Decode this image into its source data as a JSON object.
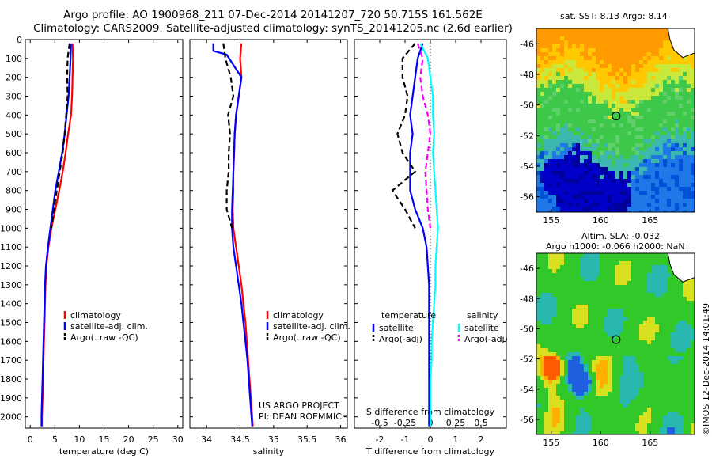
{
  "titles": {
    "line1": "Argo profile: AO 1900968_211 07-Dec-2014 20141207_720 50.715S 161.562E",
    "line2": "Climatology: CARS2009. Satellite-adjusted climatology: synTS_20141205.nc (2.6d earlier)"
  },
  "credits": {
    "project": "US ARGO PROJECT",
    "pi": "PI: DEAN ROEMMICH"
  },
  "stamp": "©IMOS 12-Dec-2014 14:01:49",
  "colors": {
    "climatology": "#ff0000",
    "satellite": "#0000ff",
    "argo": "#000000",
    "sal_satellite": "#00ffff",
    "sal_argo": "#ff00ff"
  },
  "chart_data": [
    {
      "type": "line",
      "xlabel": "temperature (deg C)",
      "xlim": [
        -1,
        31
      ],
      "xticks": [
        0,
        5,
        10,
        15,
        20,
        25,
        30
      ],
      "ylim": [
        2060,
        0
      ],
      "yticks": [
        0,
        100,
        200,
        300,
        400,
        500,
        600,
        700,
        800,
        900,
        1000,
        1100,
        1200,
        1300,
        1400,
        1500,
        1600,
        1700,
        1800,
        1900,
        2000
      ],
      "legend_placement": "right-middle",
      "series": [
        {
          "name": "climatology",
          "color": "#ff0000",
          "dash": "solid",
          "points": [
            [
              8.6,
              20
            ],
            [
              8.7,
              100
            ],
            [
              8.6,
              200
            ],
            [
              8.5,
              300
            ],
            [
              8.3,
              400
            ],
            [
              7.7,
              500
            ],
            [
              7.2,
              600
            ],
            [
              6.6,
              700
            ],
            [
              5.9,
              800
            ],
            [
              5.1,
              900
            ],
            [
              4.3,
              1000
            ],
            [
              3.7,
              1100
            ],
            [
              3.3,
              1200
            ],
            [
              3.1,
              1300
            ],
            [
              3.0,
              1400
            ],
            [
              2.9,
              1500
            ],
            [
              2.8,
              1600
            ],
            [
              2.7,
              1700
            ],
            [
              2.6,
              1800
            ],
            [
              2.5,
              1900
            ],
            [
              2.4,
              2000
            ],
            [
              2.4,
              2050
            ]
          ]
        },
        {
          "name": "satellite-adj. clim.",
          "color": "#0000ff",
          "dash": "solid",
          "points": [
            [
              8.3,
              20
            ],
            [
              8.2,
              100
            ],
            [
              8.0,
              200
            ],
            [
              7.8,
              300
            ],
            [
              7.4,
              400
            ],
            [
              7.0,
              500
            ],
            [
              6.5,
              600
            ],
            [
              5.8,
              700
            ],
            [
              5.1,
              800
            ],
            [
              4.6,
              900
            ],
            [
              4.1,
              1000
            ],
            [
              3.6,
              1100
            ],
            [
              3.2,
              1200
            ],
            [
              3.0,
              1300
            ],
            [
              2.9,
              1400
            ],
            [
              2.8,
              1500
            ],
            [
              2.7,
              1600
            ],
            [
              2.6,
              1700
            ],
            [
              2.5,
              1800
            ],
            [
              2.4,
              1900
            ],
            [
              2.3,
              2000
            ],
            [
              2.3,
              2050
            ]
          ]
        },
        {
          "name": "Argo(..raw -QC)",
          "color": "#000000",
          "dash": "dashed",
          "points": [
            [
              8.0,
              20
            ],
            [
              7.6,
              100
            ],
            [
              7.5,
              200
            ],
            [
              7.6,
              300
            ],
            [
              7.3,
              400
            ],
            [
              7.0,
              500
            ],
            [
              6.6,
              600
            ],
            [
              6.0,
              700
            ],
            [
              5.4,
              800
            ],
            [
              4.8,
              900
            ],
            [
              4.3,
              1000
            ]
          ]
        }
      ]
    },
    {
      "type": "line",
      "xlabel": "salinity",
      "xlim": [
        33.75,
        36.1
      ],
      "xticks": [
        34,
        34.5,
        35,
        35.5,
        36
      ],
      "ylim": [
        2060,
        0
      ],
      "legend_placement": "right-middle",
      "series": [
        {
          "name": "climatology",
          "color": "#ff0000",
          "dash": "solid",
          "points": [
            [
              34.52,
              20
            ],
            [
              34.5,
              100
            ],
            [
              34.52,
              200
            ],
            [
              34.48,
              300
            ],
            [
              34.44,
              400
            ],
            [
              34.42,
              500
            ],
            [
              34.41,
              600
            ],
            [
              34.4,
              700
            ],
            [
              34.4,
              800
            ],
            [
              34.39,
              900
            ],
            [
              34.4,
              1000
            ],
            [
              34.44,
              1100
            ],
            [
              34.48,
              1200
            ],
            [
              34.52,
              1300
            ],
            [
              34.55,
              1400
            ],
            [
              34.58,
              1500
            ],
            [
              34.6,
              1600
            ],
            [
              34.62,
              1700
            ],
            [
              34.64,
              1800
            ],
            [
              34.66,
              1900
            ],
            [
              34.68,
              2000
            ],
            [
              34.69,
              2050
            ]
          ]
        },
        {
          "name": "satellite-adj. clim.",
          "color": "#0000ff",
          "dash": "solid",
          "points": [
            [
              34.1,
              20
            ],
            [
              34.1,
              60
            ],
            [
              34.3,
              80
            ],
            [
              34.52,
              200
            ],
            [
              34.48,
              300
            ],
            [
              34.44,
              400
            ],
            [
              34.42,
              500
            ],
            [
              34.41,
              600
            ],
            [
              34.4,
              700
            ],
            [
              34.39,
              800
            ],
            [
              34.38,
              900
            ],
            [
              34.38,
              1000
            ],
            [
              34.4,
              1100
            ],
            [
              34.44,
              1200
            ],
            [
              34.48,
              1300
            ],
            [
              34.52,
              1400
            ],
            [
              34.55,
              1500
            ],
            [
              34.58,
              1600
            ],
            [
              34.61,
              1700
            ],
            [
              34.63,
              1800
            ],
            [
              34.65,
              1900
            ],
            [
              34.67,
              2000
            ],
            [
              34.68,
              2050
            ]
          ]
        },
        {
          "name": "Argo(..raw -QC)",
          "color": "#000000",
          "dash": "dashed",
          "points": [
            [
              34.25,
              20
            ],
            [
              34.28,
              100
            ],
            [
              34.36,
              200
            ],
            [
              34.4,
              300
            ],
            [
              34.32,
              400
            ],
            [
              34.35,
              500
            ],
            [
              34.33,
              600
            ],
            [
              34.33,
              700
            ],
            [
              34.3,
              800
            ],
            [
              34.3,
              900
            ],
            [
              34.38,
              1000
            ]
          ]
        }
      ]
    },
    {
      "type": "line",
      "xlabel": "T difference from climatology",
      "xlabel_top": "S difference from climatology",
      "xlim": [
        -3,
        3
      ],
      "xticks": [
        -2,
        -1,
        0,
        1,
        2
      ],
      "xticks_top_labels": [
        "-0.5",
        "-0.25",
        "0",
        "0.25",
        "0.5"
      ],
      "xticks_top_positions": [
        -2,
        -1,
        0,
        1,
        2
      ],
      "ylim": [
        2060,
        0
      ],
      "legend_placement": "right-middle",
      "legend_headers": [
        "temperature",
        "salinity"
      ],
      "series": [
        {
          "name": "satellite",
          "group": "temperature",
          "color": "#0000ff",
          "dash": "solid",
          "points": [
            [
              -0.3,
              20
            ],
            [
              -0.5,
              100
            ],
            [
              -0.6,
              200
            ],
            [
              -0.7,
              300
            ],
            [
              -0.8,
              400
            ],
            [
              -0.7,
              500
            ],
            [
              -0.8,
              600
            ],
            [
              -0.8,
              700
            ],
            [
              -0.8,
              800
            ],
            [
              -0.6,
              900
            ],
            [
              -0.3,
              1000
            ],
            [
              -0.15,
              1100
            ],
            [
              -0.1,
              1200
            ],
            [
              -0.05,
              1300
            ],
            [
              -0.05,
              1500
            ],
            [
              -0.05,
              1700
            ],
            [
              -0.05,
              1900
            ],
            [
              -0.05,
              2050
            ]
          ]
        },
        {
          "name": "Argo(-adj)",
          "group": "temperature",
          "color": "#000000",
          "dash": "dashed",
          "points": [
            [
              -0.6,
              20
            ],
            [
              -1.1,
              100
            ],
            [
              -1.1,
              200
            ],
            [
              -0.9,
              300
            ],
            [
              -1.0,
              400
            ],
            [
              -1.3,
              500
            ],
            [
              -1.1,
              600
            ],
            [
              -0.6,
              700
            ],
            [
              -1.5,
              800
            ],
            [
              -1.0,
              900
            ],
            [
              -0.6,
              1000
            ]
          ]
        },
        {
          "name": "satellite",
          "group": "salinity",
          "color": "#00ffff",
          "dash": "solid",
          "points": [
            [
              -0.4,
              20
            ],
            [
              -0.1,
              100
            ],
            [
              0.0,
              200
            ],
            [
              0.1,
              300
            ],
            [
              0.1,
              400
            ],
            [
              0.15,
              500
            ],
            [
              0.1,
              600
            ],
            [
              0.15,
              700
            ],
            [
              0.2,
              800
            ],
            [
              0.25,
              900
            ],
            [
              0.3,
              1000
            ],
            [
              0.25,
              1100
            ],
            [
              0.2,
              1200
            ],
            [
              0.2,
              1300
            ],
            [
              0.15,
              1400
            ],
            [
              0.1,
              1500
            ],
            [
              0.05,
              1600
            ],
            [
              0.05,
              1700
            ],
            [
              0.0,
              1800
            ],
            [
              0.0,
              1900
            ],
            [
              0.0,
              2050
            ]
          ]
        },
        {
          "name": "Argo(-adj)",
          "group": "salinity",
          "color": "#ff00ff",
          "dash": "dashed",
          "points": [
            [
              -0.5,
              20
            ],
            [
              -0.3,
              100
            ],
            [
              -0.4,
              200
            ],
            [
              -0.3,
              300
            ],
            [
              -0.1,
              400
            ],
            [
              0.0,
              500
            ],
            [
              -0.1,
              600
            ],
            [
              -0.2,
              700
            ],
            [
              -0.15,
              800
            ],
            [
              -0.1,
              900
            ],
            [
              0.0,
              1000
            ]
          ]
        }
      ]
    },
    {
      "type": "heatmap",
      "title": "sat. SST: 8.13 Argo: 8.14",
      "xlim": [
        153.5,
        169.5
      ],
      "ylim": [
        -57,
        -45
      ],
      "xticks": [
        155,
        160,
        165
      ],
      "yticks": [
        -46,
        -48,
        -50,
        -52,
        -54,
        -56
      ],
      "marker": {
        "lon": 161.562,
        "lat": -50.715
      }
    },
    {
      "type": "heatmap",
      "title_line1": "Altim. SLA: -0.032",
      "title_line2": "Argo h1000: -0.066 h2000: NaN",
      "xlim": [
        153.5,
        169.5
      ],
      "ylim": [
        -57,
        -45
      ],
      "xticks": [
        155,
        160,
        165
      ],
      "yticks": [
        -46,
        -48,
        -50,
        -52,
        -54,
        -56
      ],
      "marker": {
        "lon": 161.562,
        "lat": -50.715
      }
    }
  ]
}
